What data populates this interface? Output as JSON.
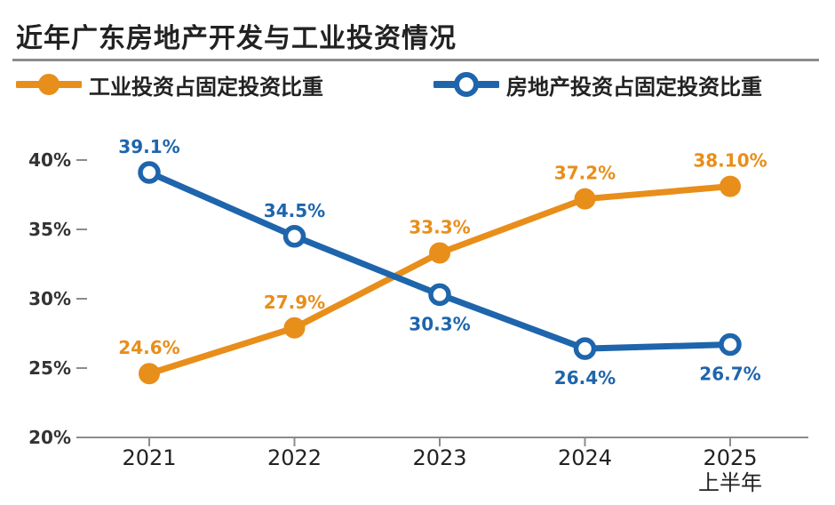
{
  "title": "近年广东房地产开发与工业投资情况",
  "colors": {
    "industry": "#E88E1A",
    "realestate": "#1E65AC",
    "axis": "#8c8c8c"
  },
  "chart_data": {
    "type": "line",
    "categories": [
      "2021",
      "2022",
      "2023",
      "2024",
      "2025\n上半年"
    ],
    "category_lines": [
      [
        "2021"
      ],
      [
        "2022"
      ],
      [
        "2023"
      ],
      [
        "2024"
      ],
      [
        "2025",
        "上半年"
      ]
    ],
    "ylim": [
      20,
      40
    ],
    "yticks": [
      20,
      25,
      30,
      35,
      40
    ],
    "ytick_labels": [
      "20%",
      "25%",
      "30%",
      "35%",
      "40%"
    ],
    "grid": false,
    "legend_position": "top",
    "series": [
      {
        "name": "工业投资占固定投资比重",
        "color": "#E88E1A",
        "marker": "filled",
        "values": [
          24.6,
          27.9,
          33.3,
          37.2,
          38.1
        ],
        "labels": [
          "24.6%",
          "27.9%",
          "33.3%",
          "37.2%",
          "38.10%"
        ],
        "label_pos": [
          "above",
          "above",
          "above",
          "above",
          "above"
        ]
      },
      {
        "name": "房地产投资占固定投资比重",
        "color": "#1E65AC",
        "marker": "hollow",
        "values": [
          39.1,
          34.5,
          30.3,
          26.4,
          26.7
        ],
        "labels": [
          "39.1%",
          "34.5%",
          "30.3%",
          "26.4%",
          "26.7%"
        ],
        "label_pos": [
          "above",
          "above",
          "below",
          "below",
          "below"
        ]
      }
    ]
  }
}
